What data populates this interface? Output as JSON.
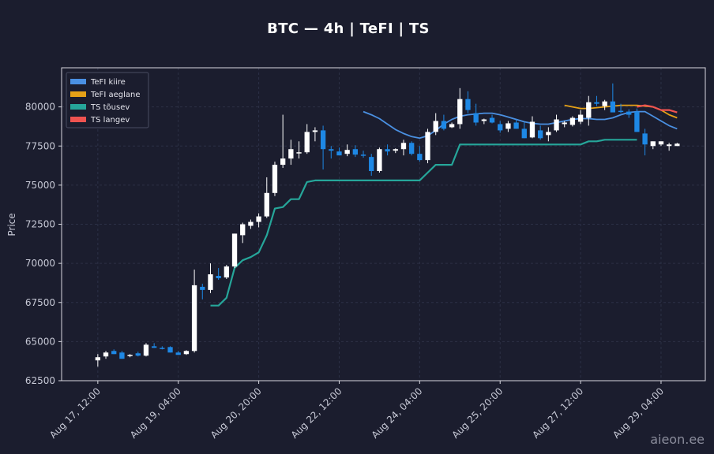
{
  "title": "BTC — 4h  |  TeFI  |  TS",
  "watermark": "aieon.ee",
  "colors": {
    "background": "#1b1d2e",
    "bull": "#ffffff",
    "bear": "#1e88e5",
    "tefi_fast": "#4a90e2",
    "tefi_slow": "#e5a117",
    "ts_up": "#26a69a",
    "ts_down": "#ef5350",
    "grid": "#2c3046",
    "frame": "#d8d8e0"
  },
  "chart_data": {
    "type": "candlestick",
    "ylabel": "Price",
    "ylim": [
      62500,
      82500
    ],
    "y_ticks": [
      62500,
      65000,
      67500,
      70000,
      72500,
      75000,
      77500,
      80000
    ],
    "y_tick_labels": [
      "62500",
      "65000",
      "67500",
      "70000",
      "72500",
      "75000",
      "77500",
      "80000"
    ],
    "x_ticks": [
      0,
      10,
      20,
      30,
      40,
      50,
      60,
      70
    ],
    "x_tick_labels": [
      "Aug 17, 12:00",
      "Aug 19, 04:00",
      "Aug 20, 20:00",
      "Aug 22, 12:00",
      "Aug 24, 04:00",
      "Aug 25, 20:00",
      "Aug 27, 12:00",
      "Aug 29, 04:00"
    ],
    "xlim": [
      -4.5,
      75.5
    ],
    "grid": true,
    "legend_position": "top-left",
    "legend": [
      {
        "label": "TeFI kiire",
        "color": "#4a90e2"
      },
      {
        "label": "TeFI aeglane",
        "color": "#e5a117"
      },
      {
        "label": "TS tõusev",
        "color": "#26a69a"
      },
      {
        "label": "TS langev",
        "color": "#ef5350"
      }
    ],
    "candles": [
      [
        63800,
        64200,
        63400,
        64000
      ],
      [
        64050,
        64400,
        63900,
        64300
      ],
      [
        64400,
        64500,
        64200,
        64200
      ],
      [
        64300,
        64400,
        63900,
        63900
      ],
      [
        64100,
        64200,
        64000,
        64150
      ],
      [
        64250,
        64350,
        64050,
        64100
      ],
      [
        64100,
        64900,
        64050,
        64800
      ],
      [
        64700,
        64900,
        64600,
        64600
      ],
      [
        64600,
        64700,
        64500,
        64550
      ],
      [
        64650,
        64700,
        64300,
        64300
      ],
      [
        64300,
        64400,
        64150,
        64150
      ],
      [
        64200,
        64450,
        64150,
        64400
      ],
      [
        64400,
        69600,
        64300,
        68600
      ],
      [
        68500,
        68700,
        67700,
        68300
      ],
      [
        68300,
        70000,
        68100,
        69300
      ],
      [
        69200,
        69700,
        68950,
        69050
      ],
      [
        69100,
        69900,
        69000,
        69800
      ],
      [
        69800,
        71900,
        69700,
        71900
      ],
      [
        71800,
        72600,
        71300,
        72500
      ],
      [
        72400,
        72800,
        72200,
        72650
      ],
      [
        72650,
        73200,
        72300,
        73000
      ],
      [
        73000,
        75500,
        72900,
        74500
      ],
      [
        74500,
        76500,
        74300,
        76300
      ],
      [
        76300,
        79500,
        76100,
        76700
      ],
      [
        76700,
        77900,
        76300,
        77300
      ],
      [
        77100,
        77800,
        76700,
        77100
      ],
      [
        77100,
        78900,
        77000,
        78400
      ],
      [
        78400,
        78700,
        77800,
        78500
      ],
      [
        78500,
        78800,
        76000,
        77300
      ],
      [
        77300,
        77500,
        76700,
        77200
      ],
      [
        77150,
        77400,
        76900,
        76900
      ],
      [
        77000,
        77600,
        76850,
        77250
      ],
      [
        77300,
        77550,
        76800,
        76950
      ],
      [
        76950,
        77200,
        76750,
        76900
      ],
      [
        76800,
        77000,
        75600,
        75900
      ],
      [
        75900,
        77400,
        75800,
        77300
      ],
      [
        77300,
        77600,
        76900,
        77150
      ],
      [
        77200,
        77350,
        77050,
        77300
      ],
      [
        77300,
        77900,
        76900,
        77700
      ],
      [
        77700,
        77800,
        76900,
        77000
      ],
      [
        77000,
        77500,
        76500,
        76600
      ],
      [
        76600,
        78600,
        76400,
        78400
      ],
      [
        78400,
        79600,
        78200,
        79100
      ],
      [
        79100,
        79500,
        78500,
        78600
      ],
      [
        78700,
        79000,
        78650,
        78900
      ],
      [
        78900,
        81200,
        78600,
        80500
      ],
      [
        80500,
        81000,
        79600,
        79800
      ],
      [
        79600,
        80200,
        78800,
        79000
      ],
      [
        79100,
        79250,
        78900,
        79200
      ],
      [
        79300,
        79500,
        78950,
        79000
      ],
      [
        78900,
        79100,
        78350,
        78500
      ],
      [
        78600,
        79100,
        78400,
        78950
      ],
      [
        79000,
        79200,
        78600,
        78600
      ],
      [
        78600,
        79000,
        78000,
        78000
      ],
      [
        78050,
        79400,
        78000,
        79050
      ],
      [
        78500,
        78800,
        77900,
        78000
      ],
      [
        78200,
        78700,
        77800,
        78400
      ],
      [
        78500,
        79500,
        78400,
        79200
      ],
      [
        78900,
        79100,
        78700,
        79000
      ],
      [
        78850,
        79400,
        78750,
        79300
      ],
      [
        79050,
        79800,
        78900,
        79500
      ],
      [
        79300,
        80700,
        78800,
        80300
      ],
      [
        80300,
        80700,
        80050,
        80200
      ],
      [
        80050,
        80450,
        79800,
        80350
      ],
      [
        80350,
        81500,
        79700,
        79650
      ],
      [
        79750,
        80200,
        79600,
        79700
      ],
      [
        79700,
        79850,
        79300,
        79500
      ],
      [
        79700,
        79900,
        78400,
        78400
      ],
      [
        78300,
        78600,
        76900,
        77600
      ],
      [
        77500,
        77800,
        77300,
        77800
      ],
      [
        77600,
        77800,
        77500,
        77800
      ],
      [
        77500,
        77700,
        77200,
        77600
      ],
      [
        77500,
        77700,
        77500,
        77650
      ]
    ],
    "series": [
      {
        "name": "TeFI kiire",
        "x": [
          33,
          34,
          35,
          36,
          37,
          38,
          39,
          40,
          41,
          42,
          43,
          44,
          45,
          46,
          47,
          48,
          49,
          50,
          51,
          52,
          53,
          54,
          55,
          56,
          57,
          58,
          59,
          60,
          61,
          62,
          63,
          64,
          65,
          66,
          67,
          68,
          69,
          70,
          71,
          72
        ],
        "y": [
          79700,
          79500,
          79250,
          78900,
          78550,
          78300,
          78100,
          78000,
          78150,
          78500,
          78900,
          79200,
          79400,
          79500,
          79550,
          79600,
          79600,
          79500,
          79350,
          79200,
          79050,
          78950,
          78900,
          78900,
          79000,
          79100,
          79200,
          79250,
          79250,
          79200,
          79200,
          79300,
          79500,
          79650,
          79700,
          79700,
          79400,
          79100,
          78800,
          78600
        ]
      },
      {
        "name": "TeFI aeglane",
        "x": [
          58,
          59,
          60,
          61,
          62,
          63,
          64,
          65,
          66,
          67,
          68,
          69,
          70,
          71,
          72
        ],
        "y": [
          80100,
          80000,
          79900,
          79900,
          79950,
          80000,
          80050,
          80100,
          80100,
          80100,
          80050,
          80000,
          79800,
          79500,
          79300
        ]
      },
      {
        "name": "TS tõusev",
        "x": [
          14,
          15,
          16,
          17,
          18,
          19,
          20,
          21,
          22,
          23,
          24,
          25,
          26,
          27,
          28,
          29,
          30,
          31,
          32,
          33,
          34,
          35,
          36,
          37,
          38,
          39,
          40,
          41,
          42,
          43,
          44,
          45,
          46,
          47,
          48,
          49,
          50,
          51,
          52,
          53,
          54,
          55,
          56,
          57,
          58,
          59,
          60,
          61,
          62,
          63,
          64,
          65,
          66,
          67
        ],
        "y": [
          67300,
          67300,
          67800,
          69700,
          70200,
          70400,
          70700,
          71800,
          73500,
          73600,
          74100,
          74100,
          75200,
          75300,
          75300,
          75300,
          75300,
          75300,
          75300,
          75300,
          75300,
          75300,
          75300,
          75300,
          75300,
          75300,
          75300,
          75800,
          76300,
          76300,
          76300,
          77600,
          77600,
          77600,
          77600,
          77600,
          77600,
          77600,
          77600,
          77600,
          77600,
          77600,
          77600,
          77600,
          77600,
          77600,
          77600,
          77800,
          77800,
          77900,
          77900,
          77900,
          77900,
          77900
        ]
      },
      {
        "name": "TS langev",
        "x": [
          67,
          68,
          69,
          70,
          71,
          72
        ],
        "y": [
          80000,
          80100,
          80000,
          79800,
          79800,
          79650
        ]
      }
    ]
  }
}
